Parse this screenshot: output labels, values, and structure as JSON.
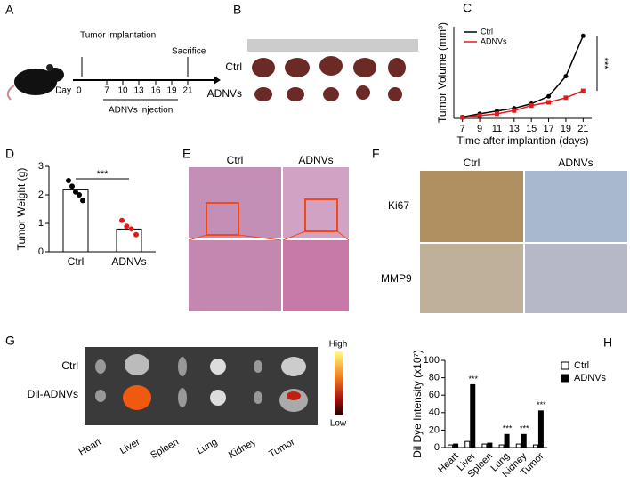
{
  "panel_labels": [
    "A",
    "B",
    "C",
    "D",
    "E",
    "F",
    "G",
    "H"
  ],
  "panel_a": {
    "implantation": "Tumor implantation",
    "sacrifice": "Sacrifice",
    "day": "Day",
    "days": [
      0,
      7,
      10,
      13,
      16,
      19,
      21
    ],
    "injection": "ADNVs injection"
  },
  "panel_b": {
    "rows": [
      "Ctrl",
      "ADNVs"
    ]
  },
  "panel_e": {
    "columns": [
      "Ctrl",
      "ADNVs"
    ]
  },
  "panel_f": {
    "columns": [
      "Ctrl",
      "ADNVs"
    ],
    "rows": [
      "Ki67",
      "MMP9"
    ]
  },
  "panel_g": {
    "rows": [
      "Ctrl",
      "Dil-ADNVs"
    ],
    "organs": [
      "Heart",
      "Liver",
      "Spleen",
      "Lung",
      "Kidney",
      "Tumor"
    ],
    "scale_high": "High",
    "scale_low": "Low"
  },
  "chart_data": [
    {
      "type": "line",
      "xlabel": "Time after implantion (days)",
      "ylabel": "Tumor Volume (mm³)",
      "x": [
        7,
        9,
        11,
        13,
        15,
        17,
        19,
        21
      ],
      "xlim": [
        6,
        22
      ],
      "xticks": [
        7,
        9,
        11,
        13,
        15,
        17,
        19,
        21
      ],
      "ylim": [
        0,
        2000
      ],
      "series": [
        {
          "name": "Ctrl",
          "color": "#000000",
          "values": [
            30,
            100,
            160,
            220,
            320,
            480,
            920,
            1800
          ]
        },
        {
          "name": "ADNVs",
          "color": "#e31a1c",
          "values": [
            20,
            60,
            100,
            170,
            280,
            350,
            450,
            600
          ]
        }
      ],
      "annotation": "***",
      "legend": "upper-left"
    },
    {
      "type": "bar",
      "ylabel": "Tumor Weight (g)",
      "categories": [
        "Ctrl",
        "ADNVs"
      ],
      "values": [
        2.2,
        0.8
      ],
      "ylim": [
        0,
        3
      ],
      "yticks": [
        0,
        1,
        2,
        3
      ],
      "points": [
        {
          "color": "#000000",
          "values": [
            2.5,
            2.3,
            2.1,
            2.0,
            1.8
          ]
        },
        {
          "color": "#e31a1c",
          "values": [
            1.1,
            0.9,
            0.8,
            0.6
          ]
        }
      ],
      "annotation": "***"
    },
    {
      "type": "grouped_bar",
      "ylabel": "Dil Dye Intensity (x10⁷)",
      "categories": [
        "Heart",
        "Liver",
        "Spleen",
        "Lung",
        "Kidney",
        "Tumor"
      ],
      "ylim": [
        0,
        100
      ],
      "yticks": [
        0,
        20,
        40,
        60,
        80,
        100
      ],
      "series": [
        {
          "name": "Ctrl",
          "color": "#ffffff",
          "values": [
            3,
            7,
            4,
            3,
            4,
            3
          ]
        },
        {
          "name": "ADNVs",
          "color": "#000000",
          "values": [
            4,
            72,
            5,
            15,
            15,
            42
          ]
        }
      ],
      "significance": [
        null,
        "***",
        null,
        "***",
        "***",
        "***"
      ],
      "legend": "upper-right"
    }
  ]
}
